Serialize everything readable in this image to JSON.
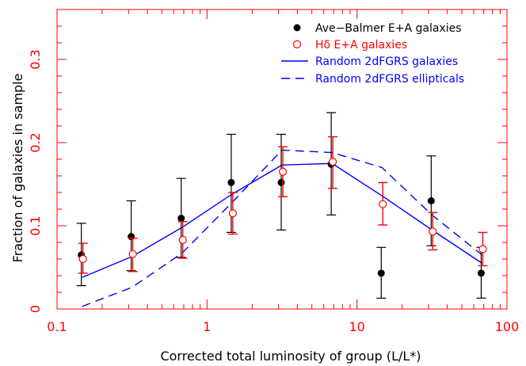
{
  "colors": {
    "axis": "#ff0000",
    "black": "#000000",
    "red": "#ff0000",
    "blue": "#0000ff",
    "background": "#ffffff"
  },
  "chart_data": {
    "type": "line",
    "title": "",
    "xlabel": "Corrected total luminosity of group (L/L*)",
    "ylabel": "Fraction of galaxies in sample",
    "xscale": "log",
    "xlim": [
      0.1,
      100
    ],
    "ylim": [
      0,
      0.36
    ],
    "grid": false,
    "legend_position": "top-right",
    "x_ticks": [
      {
        "value": 0.1,
        "label": "0.1"
      },
      {
        "value": 1,
        "label": "1"
      },
      {
        "value": 10,
        "label": "10"
      },
      {
        "value": 100,
        "label": "100"
      }
    ],
    "y_ticks": [
      {
        "value": 0,
        "label": "0"
      },
      {
        "value": 0.1,
        "label": "0.1"
      },
      {
        "value": 0.2,
        "label": "0.2"
      },
      {
        "value": 0.3,
        "label": "0.3"
      }
    ],
    "series": [
      {
        "name": "Ave−Balmer E+A galaxies",
        "kind": "points",
        "marker": "filled-circle",
        "color": "#000000",
        "points": [
          {
            "x": 0.147,
            "y": 0.065,
            "err_low": 0.028,
            "err_high": 0.103
          },
          {
            "x": 0.316,
            "y": 0.087,
            "err_low": 0.046,
            "err_high": 0.13
          },
          {
            "x": 0.681,
            "y": 0.109,
            "err_low": 0.062,
            "err_high": 0.157
          },
          {
            "x": 1.468,
            "y": 0.152,
            "err_low": 0.092,
            "err_high": 0.21
          },
          {
            "x": 3.162,
            "y": 0.152,
            "err_low": 0.095,
            "err_high": 0.21
          },
          {
            "x": 6.813,
            "y": 0.174,
            "err_low": 0.113,
            "err_high": 0.236
          },
          {
            "x": 14.68,
            "y": 0.043,
            "err_low": 0.013,
            "err_high": 0.074
          },
          {
            "x": 31.62,
            "y": 0.13,
            "err_low": 0.076,
            "err_high": 0.184
          },
          {
            "x": 68.13,
            "y": 0.043,
            "err_low": 0.013,
            "err_high": 0.074
          }
        ]
      },
      {
        "name": "Hδ E+A galaxies",
        "kind": "points",
        "marker": "open-circle",
        "color": "#ff0000",
        "points": [
          {
            "x": 0.147,
            "y": 0.06,
            "err_low": 0.043,
            "err_high": 0.079
          },
          {
            "x": 0.316,
            "y": 0.066,
            "err_low": 0.045,
            "err_high": 0.085
          },
          {
            "x": 0.681,
            "y": 0.083,
            "err_low": 0.061,
            "err_high": 0.105
          },
          {
            "x": 1.468,
            "y": 0.115,
            "err_low": 0.09,
            "err_high": 0.14
          },
          {
            "x": 3.162,
            "y": 0.165,
            "err_low": 0.135,
            "err_high": 0.195
          },
          {
            "x": 6.813,
            "y": 0.177,
            "err_low": 0.145,
            "err_high": 0.207
          },
          {
            "x": 14.68,
            "y": 0.126,
            "err_low": 0.101,
            "err_high": 0.152
          },
          {
            "x": 31.62,
            "y": 0.093,
            "err_low": 0.071,
            "err_high": 0.116
          },
          {
            "x": 68.13,
            "y": 0.072,
            "err_low": 0.052,
            "err_high": 0.092
          }
        ]
      },
      {
        "name": "Random 2dFGRS galaxies",
        "kind": "line",
        "dash": "solid",
        "color": "#0000ff",
        "points": [
          {
            "x": 0.147,
            "y": 0.038
          },
          {
            "x": 0.316,
            "y": 0.063
          },
          {
            "x": 0.681,
            "y": 0.098
          },
          {
            "x": 1.468,
            "y": 0.138
          },
          {
            "x": 3.162,
            "y": 0.173
          },
          {
            "x": 6.813,
            "y": 0.175
          },
          {
            "x": 14.68,
            "y": 0.136
          },
          {
            "x": 31.62,
            "y": 0.095
          },
          {
            "x": 68.13,
            "y": 0.055
          }
        ]
      },
      {
        "name": "Random 2dFGRS ellipticals",
        "kind": "line",
        "dash": "dashed",
        "color": "#0000ff",
        "points": [
          {
            "x": 0.147,
            "y": 0.003
          },
          {
            "x": 0.316,
            "y": 0.026
          },
          {
            "x": 0.681,
            "y": 0.067
          },
          {
            "x": 1.468,
            "y": 0.128
          },
          {
            "x": 3.162,
            "y": 0.191
          },
          {
            "x": 6.813,
            "y": 0.188
          },
          {
            "x": 14.68,
            "y": 0.17
          },
          {
            "x": 31.62,
            "y": 0.113
          },
          {
            "x": 68.13,
            "y": 0.065
          }
        ]
      }
    ]
  }
}
